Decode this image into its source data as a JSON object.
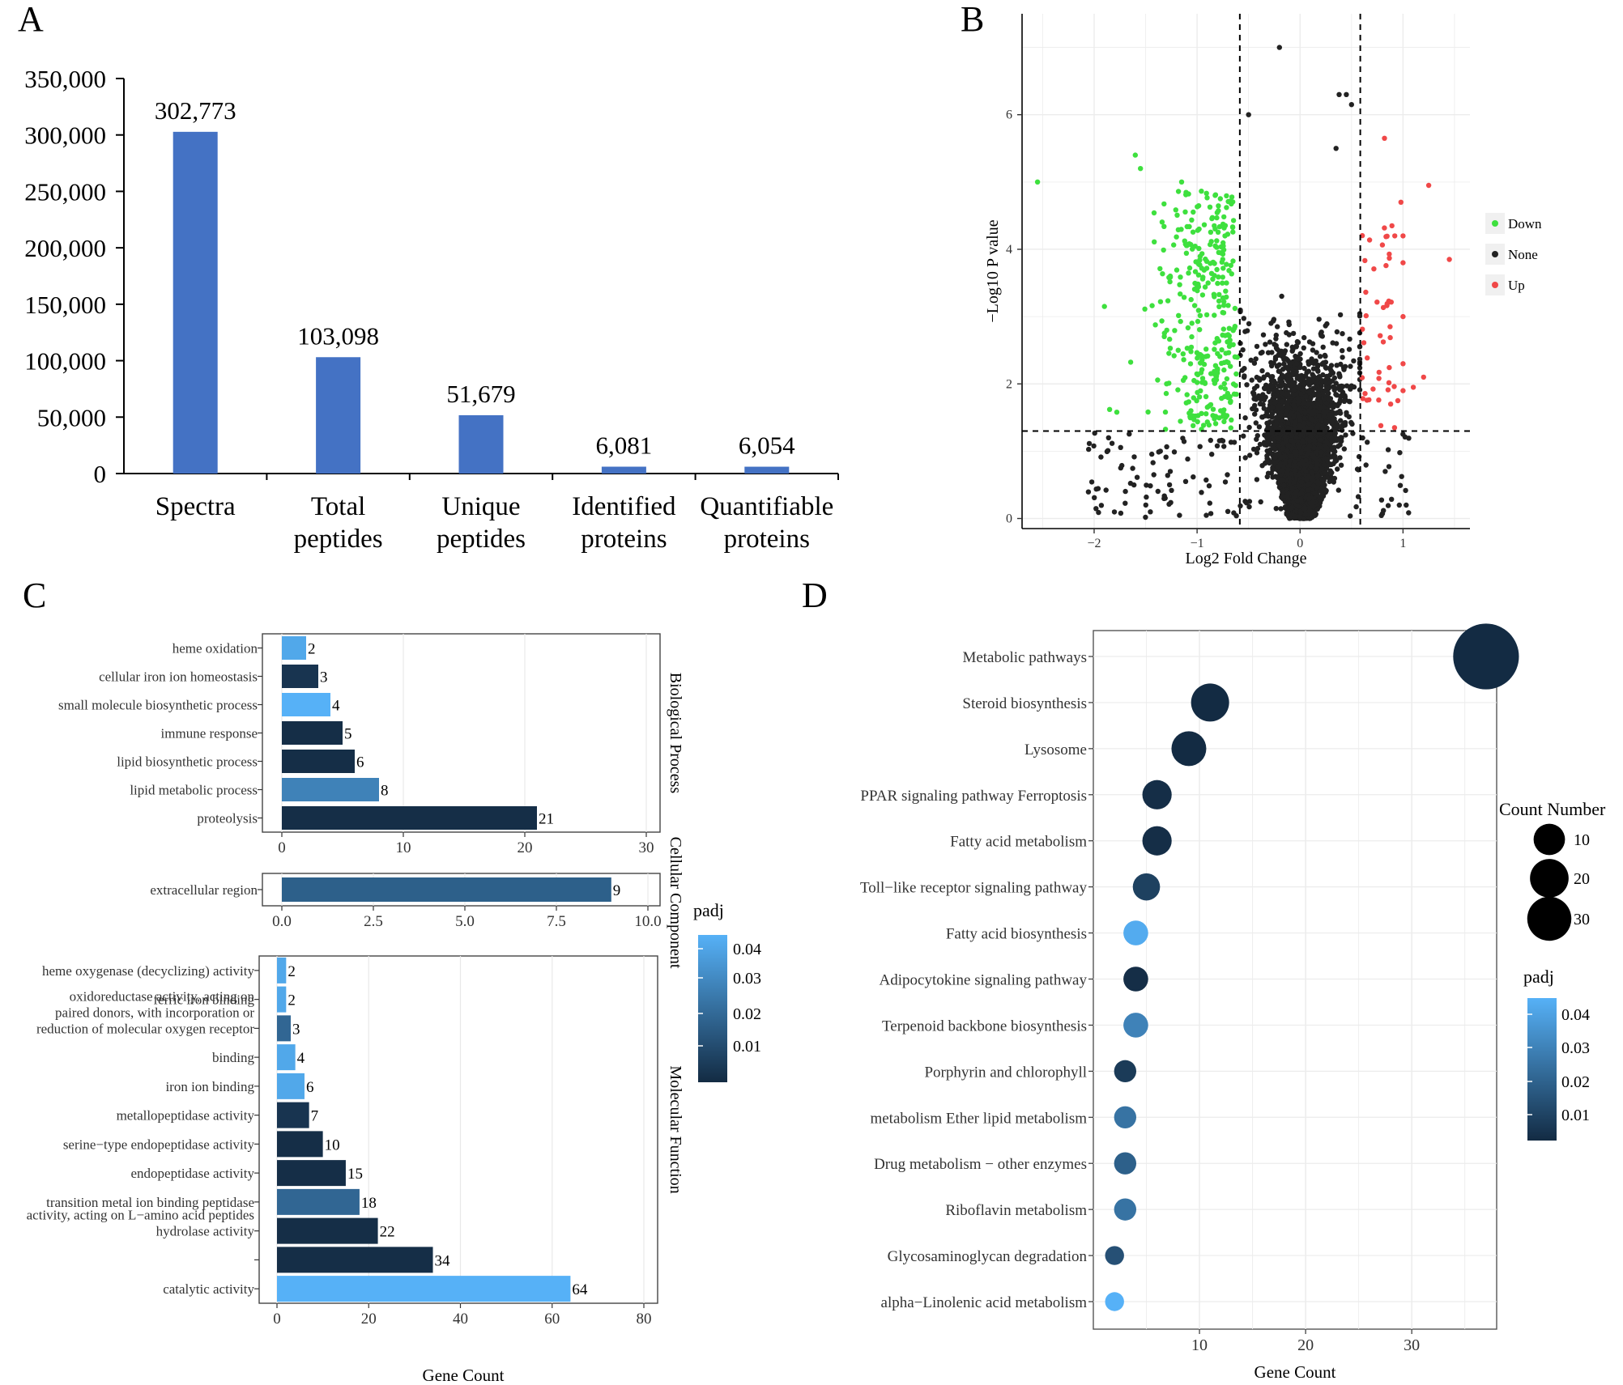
{
  "panel_labels": [
    "A",
    "B",
    "C",
    "D"
  ],
  "chart_data": [
    {
      "panel": "A",
      "type": "bar",
      "categories": [
        [
          "Spectra"
        ],
        [
          "Total",
          "peptides"
        ],
        [
          "Unique",
          "peptides"
        ],
        [
          "Identified",
          "proteins"
        ],
        [
          "Quantifiable",
          "proteins"
        ]
      ],
      "values": [
        302773,
        103098,
        51679,
        6081,
        6054
      ],
      "value_labels": [
        "302,773",
        "103,098",
        "51,679",
        "6,081",
        "6,054"
      ],
      "yticks": [
        0,
        50000,
        100000,
        150000,
        200000,
        250000,
        300000,
        350000
      ],
      "ytick_labels": [
        "0",
        "50,000",
        "100,000",
        "150,000",
        "200,000",
        "250,000",
        "300,000",
        "350,000"
      ],
      "ylim": [
        0,
        350000
      ],
      "bar_color": "#4472c4",
      "title": "",
      "xlabel": "",
      "ylabel": ""
    },
    {
      "panel": "B",
      "type": "scatter",
      "xlabel": "Log2 Fold Change",
      "ylabel": "−Log10 P value",
      "xlim": [
        -2.7,
        1.65
      ],
      "ylim": [
        -0.15,
        7.5
      ],
      "xticks": [
        -2,
        -1,
        0,
        1
      ],
      "xtick_labels": [
        "−2",
        "−1",
        "0",
        "1"
      ],
      "yticks": [
        0,
        2,
        4,
        6
      ],
      "ytick_labels": [
        "0",
        "2",
        "4",
        "6"
      ],
      "vlines": [
        -0.585,
        0.585
      ],
      "hline": 1.3,
      "legend": [
        {
          "label": "Down",
          "color": "#3ee03e"
        },
        {
          "label": "None",
          "color": "#222222"
        },
        {
          "label": "Up",
          "color": "#f04848"
        }
      ],
      "n_points_none": 4600,
      "n_points_down": 330,
      "n_points_up": 42,
      "notable_points": [
        [
          -2.55,
          5.0
        ],
        [
          -1.15,
          5.0
        ],
        [
          -1.6,
          5.4
        ],
        [
          -1.55,
          5.2
        ],
        [
          -1.9,
          3.15
        ],
        [
          -1.85,
          1.62
        ],
        [
          -1.78,
          1.58
        ],
        [
          -0.2,
          7.0
        ],
        [
          0.38,
          6.3
        ],
        [
          0.45,
          6.3
        ],
        [
          0.5,
          6.15
        ],
        [
          -0.5,
          6.0
        ],
        [
          0.35,
          5.5
        ],
        [
          0.82,
          5.65
        ],
        [
          1.25,
          4.95
        ],
        [
          0.98,
          4.7
        ],
        [
          1.45,
          3.85
        ],
        [
          1.0,
          4.2
        ],
        [
          0.92,
          4.2
        ],
        [
          1.0,
          3.8
        ],
        [
          1.2,
          2.1
        ],
        [
          1.1,
          1.95
        ],
        [
          1.0,
          1.9
        ],
        [
          0.95,
          1.75
        ],
        [
          0.88,
          1.7
        ],
        [
          1.0,
          2.3
        ],
        [
          1.0,
          3.0
        ]
      ]
    },
    {
      "panel": "C",
      "type": "bar",
      "orientation": "horizontal",
      "xlabel": "Gene Count",
      "legend_title": "padj",
      "colorbar_ticks": [
        "0.04",
        "0.03",
        "0.02",
        "0.01"
      ],
      "facets": [
        {
          "name": "Biological Process",
          "xlim": [
            0,
            30
          ],
          "xticks": [
            0,
            10,
            20,
            30
          ],
          "xtick_labels": [
            "0",
            "10",
            "20",
            "30"
          ],
          "terms": [
            {
              "label": [
                "heme oxidation"
              ],
              "count": 2,
              "padj": 0.043
            },
            {
              "label": [
                "cellular iron ion homeostasis"
              ],
              "count": 3,
              "padj": 0.006
            },
            {
              "label": [
                "small molecule biosynthetic process"
              ],
              "count": 4,
              "padj": 0.046
            },
            {
              "label": [
                "immune response"
              ],
              "count": 5,
              "padj": 0.004
            },
            {
              "label": [
                "lipid biosynthetic process"
              ],
              "count": 6,
              "padj": 0.004
            },
            {
              "label": [
                "lipid metabolic process"
              ],
              "count": 8,
              "padj": 0.031
            },
            {
              "label": [
                "proteolysis"
              ],
              "count": 21,
              "padj": 0.004
            }
          ]
        },
        {
          "name": "Cellular Component",
          "xlim": [
            0,
            10
          ],
          "xticks": [
            0,
            2.5,
            5,
            7.5,
            10
          ],
          "xtick_labels": [
            "0.0",
            "2.5",
            "5.0",
            "7.5",
            "10.0"
          ],
          "terms": [
            {
              "label": [
                "extracellular region"
              ],
              "count": 9,
              "padj": 0.02
            }
          ]
        },
        {
          "name": "Molecular Function",
          "xlim": [
            0,
            80
          ],
          "xticks": [
            0,
            20,
            40,
            60,
            80
          ],
          "xtick_labels": [
            "0",
            "20",
            "40",
            "60",
            "80"
          ],
          "terms": [
            {
              "label": [
                "heme oxygenase (decyclizing) activity"
              ],
              "count": 2,
              "padj": 0.043
            },
            {
              "label": [
                "ferric iron binding"
              ],
              "count": 2,
              "padj": 0.043
            },
            {
              "label": [
                "oxidoreductase activity, acting on",
                "paired donors, with incorporation or",
                "reduction of molecular oxygen receptor"
              ],
              "count": 3,
              "padj": 0.022
            },
            {
              "label": [
                "binding"
              ],
              "count": 4,
              "padj": 0.043
            },
            {
              "label": [
                "iron ion binding"
              ],
              "count": 6,
              "padj": 0.043
            },
            {
              "label": [
                "metallopeptidase activity"
              ],
              "count": 7,
              "padj": 0.006
            },
            {
              "label": [
                "serine−type endopeptidase activity"
              ],
              "count": 10,
              "padj": 0.004
            },
            {
              "label": [
                "endopeptidase activity"
              ],
              "count": 15,
              "padj": 0.004
            },
            {
              "label": [
                "transition metal ion binding peptidase"
              ],
              "count": 18,
              "padj": 0.022
            },
            {
              "label": [
                "activity, acting on L−amino acid peptides",
                "hydrolase activity"
              ],
              "count": 22,
              "padj": 0.004
            },
            {
              "label": [
                ""
              ],
              "count": 34,
              "padj": 0.004
            },
            {
              "label": [
                "catalytic activity"
              ],
              "count": 64,
              "padj": 0.046
            }
          ]
        }
      ]
    },
    {
      "panel": "D",
      "type": "scatter",
      "subtype": "bubble",
      "xlabel": "Gene Count",
      "xlim": [
        0,
        38
      ],
      "xticks": [
        10,
        20,
        30
      ],
      "xtick_labels": [
        "10",
        "20",
        "30"
      ],
      "size_legend_title": "Count Number",
      "size_legend_values": [
        10,
        20,
        30
      ],
      "size_legend_labels": [
        "10",
        "20",
        "30"
      ],
      "color_legend_title": "padj",
      "colorbar_ticks": [
        "0.04",
        "0.03",
        "0.02",
        "0.01"
      ],
      "terms": [
        {
          "label": "Metabolic pathways",
          "count": 37,
          "padj": 0.003
        },
        {
          "label": "Steroid biosynthesis",
          "count": 11,
          "padj": 0.003
        },
        {
          "label": "Lysosome",
          "count": 9,
          "padj": 0.003
        },
        {
          "label": "PPAR signaling pathway Ferroptosis",
          "count": 6,
          "padj": 0.004
        },
        {
          "label": "Fatty acid metabolism",
          "count": 6,
          "padj": 0.004
        },
        {
          "label": "Toll−like receptor signaling pathway",
          "count": 5,
          "padj": 0.01
        },
        {
          "label": "Fatty acid biosynthesis",
          "count": 4,
          "padj": 0.044
        },
        {
          "label": "Adipocytokine signaling pathway",
          "count": 4,
          "padj": 0.004
        },
        {
          "label": "Terpenoid backbone biosynthesis",
          "count": 4,
          "padj": 0.031
        },
        {
          "label": "Porphyrin and chlorophyll",
          "count": 3,
          "padj": 0.008
        },
        {
          "label": "metabolism Ether lipid metabolism",
          "count": 3,
          "padj": 0.026
        },
        {
          "label": "Drug metabolism − other enzymes",
          "count": 3,
          "padj": 0.02
        },
        {
          "label": "Riboflavin metabolism",
          "count": 3,
          "padj": 0.026
        },
        {
          "label": "Glycosaminoglycan degradation",
          "count": 2,
          "padj": 0.015
        },
        {
          "label": "alpha−Linolenic acid metabolism",
          "count": 2,
          "padj": 0.046
        }
      ]
    }
  ]
}
